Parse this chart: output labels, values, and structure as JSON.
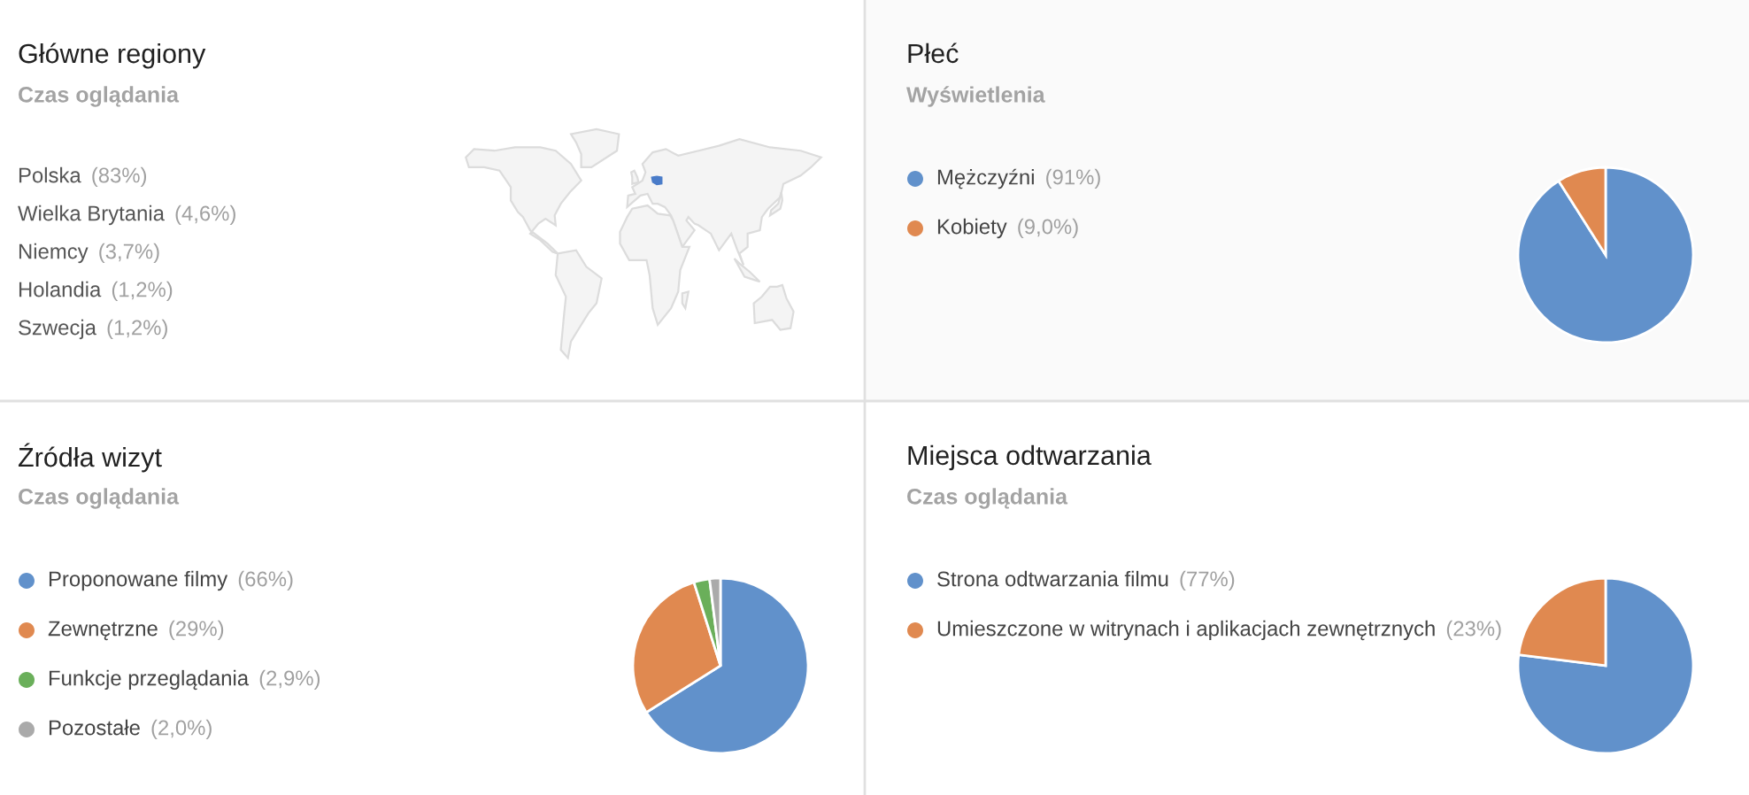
{
  "chart_data": [
    {
      "type": "other",
      "title": "Główne regiony",
      "subtitle": "Czas oglądania",
      "categories": [
        "Polska",
        "Wielka Brytania",
        "Niemcy",
        "Holandia",
        "Szwecja"
      ],
      "value_labels": [
        "(83%)",
        "(4,6%)",
        "(3,7%)",
        "(1,2%)",
        "(1,2%)"
      ]
    },
    {
      "type": "pie",
      "title": "Płeć",
      "subtitle": "Wyświetlenia",
      "categories": [
        "Mężczyźni",
        "Kobiety"
      ],
      "values": [
        91,
        9.0
      ],
      "value_labels": [
        "(91%)",
        "(9,0%)"
      ],
      "colors": [
        "#6191cb",
        "#e08950"
      ],
      "legend": "left"
    },
    {
      "type": "pie",
      "title": "Źródła wizyt",
      "subtitle": "Czas oglądania",
      "categories": [
        "Proponowane filmy",
        "Zewnętrzne",
        "Funkcje przeglądania",
        "Pozostałe"
      ],
      "values": [
        66,
        29,
        2.9,
        2.0
      ],
      "value_labels": [
        "(66%)",
        "(29%)",
        "(2,9%)",
        "(2,0%)"
      ],
      "colors": [
        "#6191cb",
        "#e08950",
        "#6aaf5a",
        "#aaaaaa"
      ],
      "legend": "left"
    },
    {
      "type": "pie",
      "title": "Miejsca odtwarzania",
      "subtitle": "Czas oglądania",
      "categories": [
        "Strona odtwarzania filmu",
        "Umieszczone w witrynach i aplikacjach zewnętrznych"
      ],
      "values": [
        77,
        23
      ],
      "value_labels": [
        "(77%)",
        "(23%)"
      ],
      "colors": [
        "#6191cb",
        "#e08950"
      ],
      "legend": "left"
    }
  ]
}
